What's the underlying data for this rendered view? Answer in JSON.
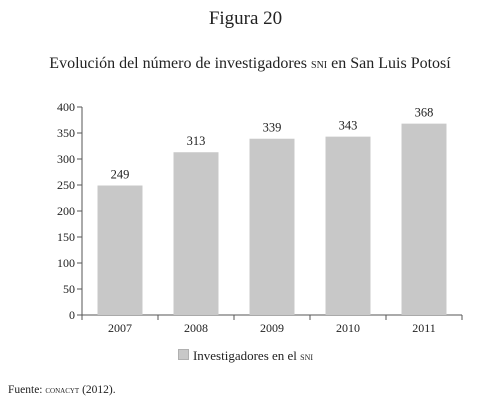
{
  "figure_label": "Figura 20",
  "title_main": "Evolución del número de investigadores",
  "title_acronym": "sni",
  "title_tail": "en San Luis Potosí",
  "legend_label": "Investigadores en el",
  "legend_acronym": "sni",
  "source_prefix": "Fuente:",
  "source_org": "conacyt",
  "source_year": "(2012).",
  "colors": {
    "bar": "#c8c8c8",
    "axis": "#555555"
  },
  "chart_data": {
    "type": "bar",
    "categories": [
      "2007",
      "2008",
      "2009",
      "2010",
      "2011"
    ],
    "series": [
      {
        "name": "Investigadores en el sni",
        "values": [
          249,
          313,
          339,
          343,
          368
        ]
      }
    ],
    "data_labels": [
      "249",
      "313",
      "339",
      "343",
      "368"
    ],
    "ylim": [
      0,
      400
    ],
    "yticks": [
      0,
      50,
      100,
      150,
      200,
      250,
      300,
      350,
      400
    ],
    "grid": false,
    "legend": "bottom-center"
  }
}
